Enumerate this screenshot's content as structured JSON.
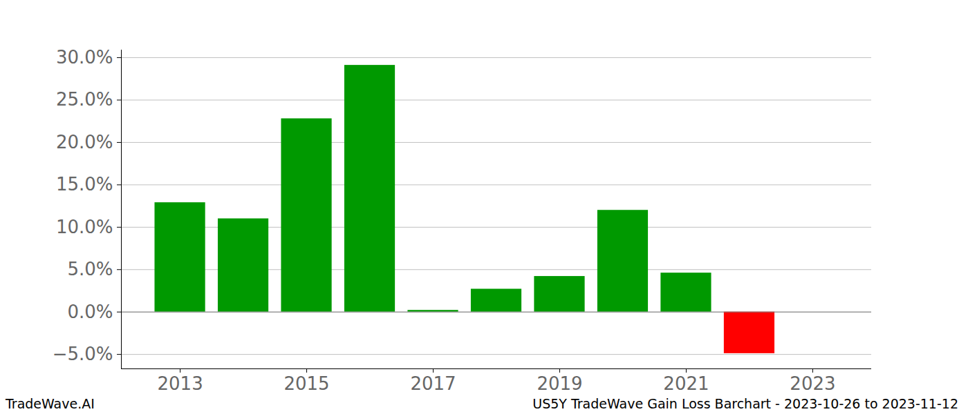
{
  "chart_data": {
    "type": "bar",
    "x": [
      2013,
      2014,
      2015,
      2016,
      2017,
      2018,
      2019,
      2020,
      2021,
      2022
    ],
    "values": [
      12.9,
      11.0,
      22.8,
      29.1,
      0.2,
      2.7,
      4.2,
      12.0,
      4.6,
      -4.9
    ],
    "colors": [
      "#009900",
      "#009900",
      "#009900",
      "#009900",
      "#009900",
      "#009900",
      "#009900",
      "#009900",
      "#009900",
      "#ff0000"
    ],
    "xlim": [
      2012.07,
      2023.93
    ],
    "xticks": [
      2013,
      2015,
      2017,
      2019,
      2021,
      2023
    ],
    "ylim": [
      -6.7,
      30.9
    ],
    "yticks": [
      {
        "value": -5,
        "label": "−5.0%"
      },
      {
        "value": 0,
        "label": "0.0%"
      },
      {
        "value": 5,
        "label": "5.0%"
      },
      {
        "value": 10,
        "label": "10.0%"
      },
      {
        "value": 15,
        "label": "15.0%"
      },
      {
        "value": 20,
        "label": "20.0%"
      },
      {
        "value": 25,
        "label": "25.0%"
      },
      {
        "value": 30,
        "label": "30.0%"
      }
    ],
    "grid": true,
    "watermark": "TradeWave.AI",
    "caption": "US5Y TradeWave Gain Loss Barchart - 2023-10-26 to 2023-11-12"
  }
}
